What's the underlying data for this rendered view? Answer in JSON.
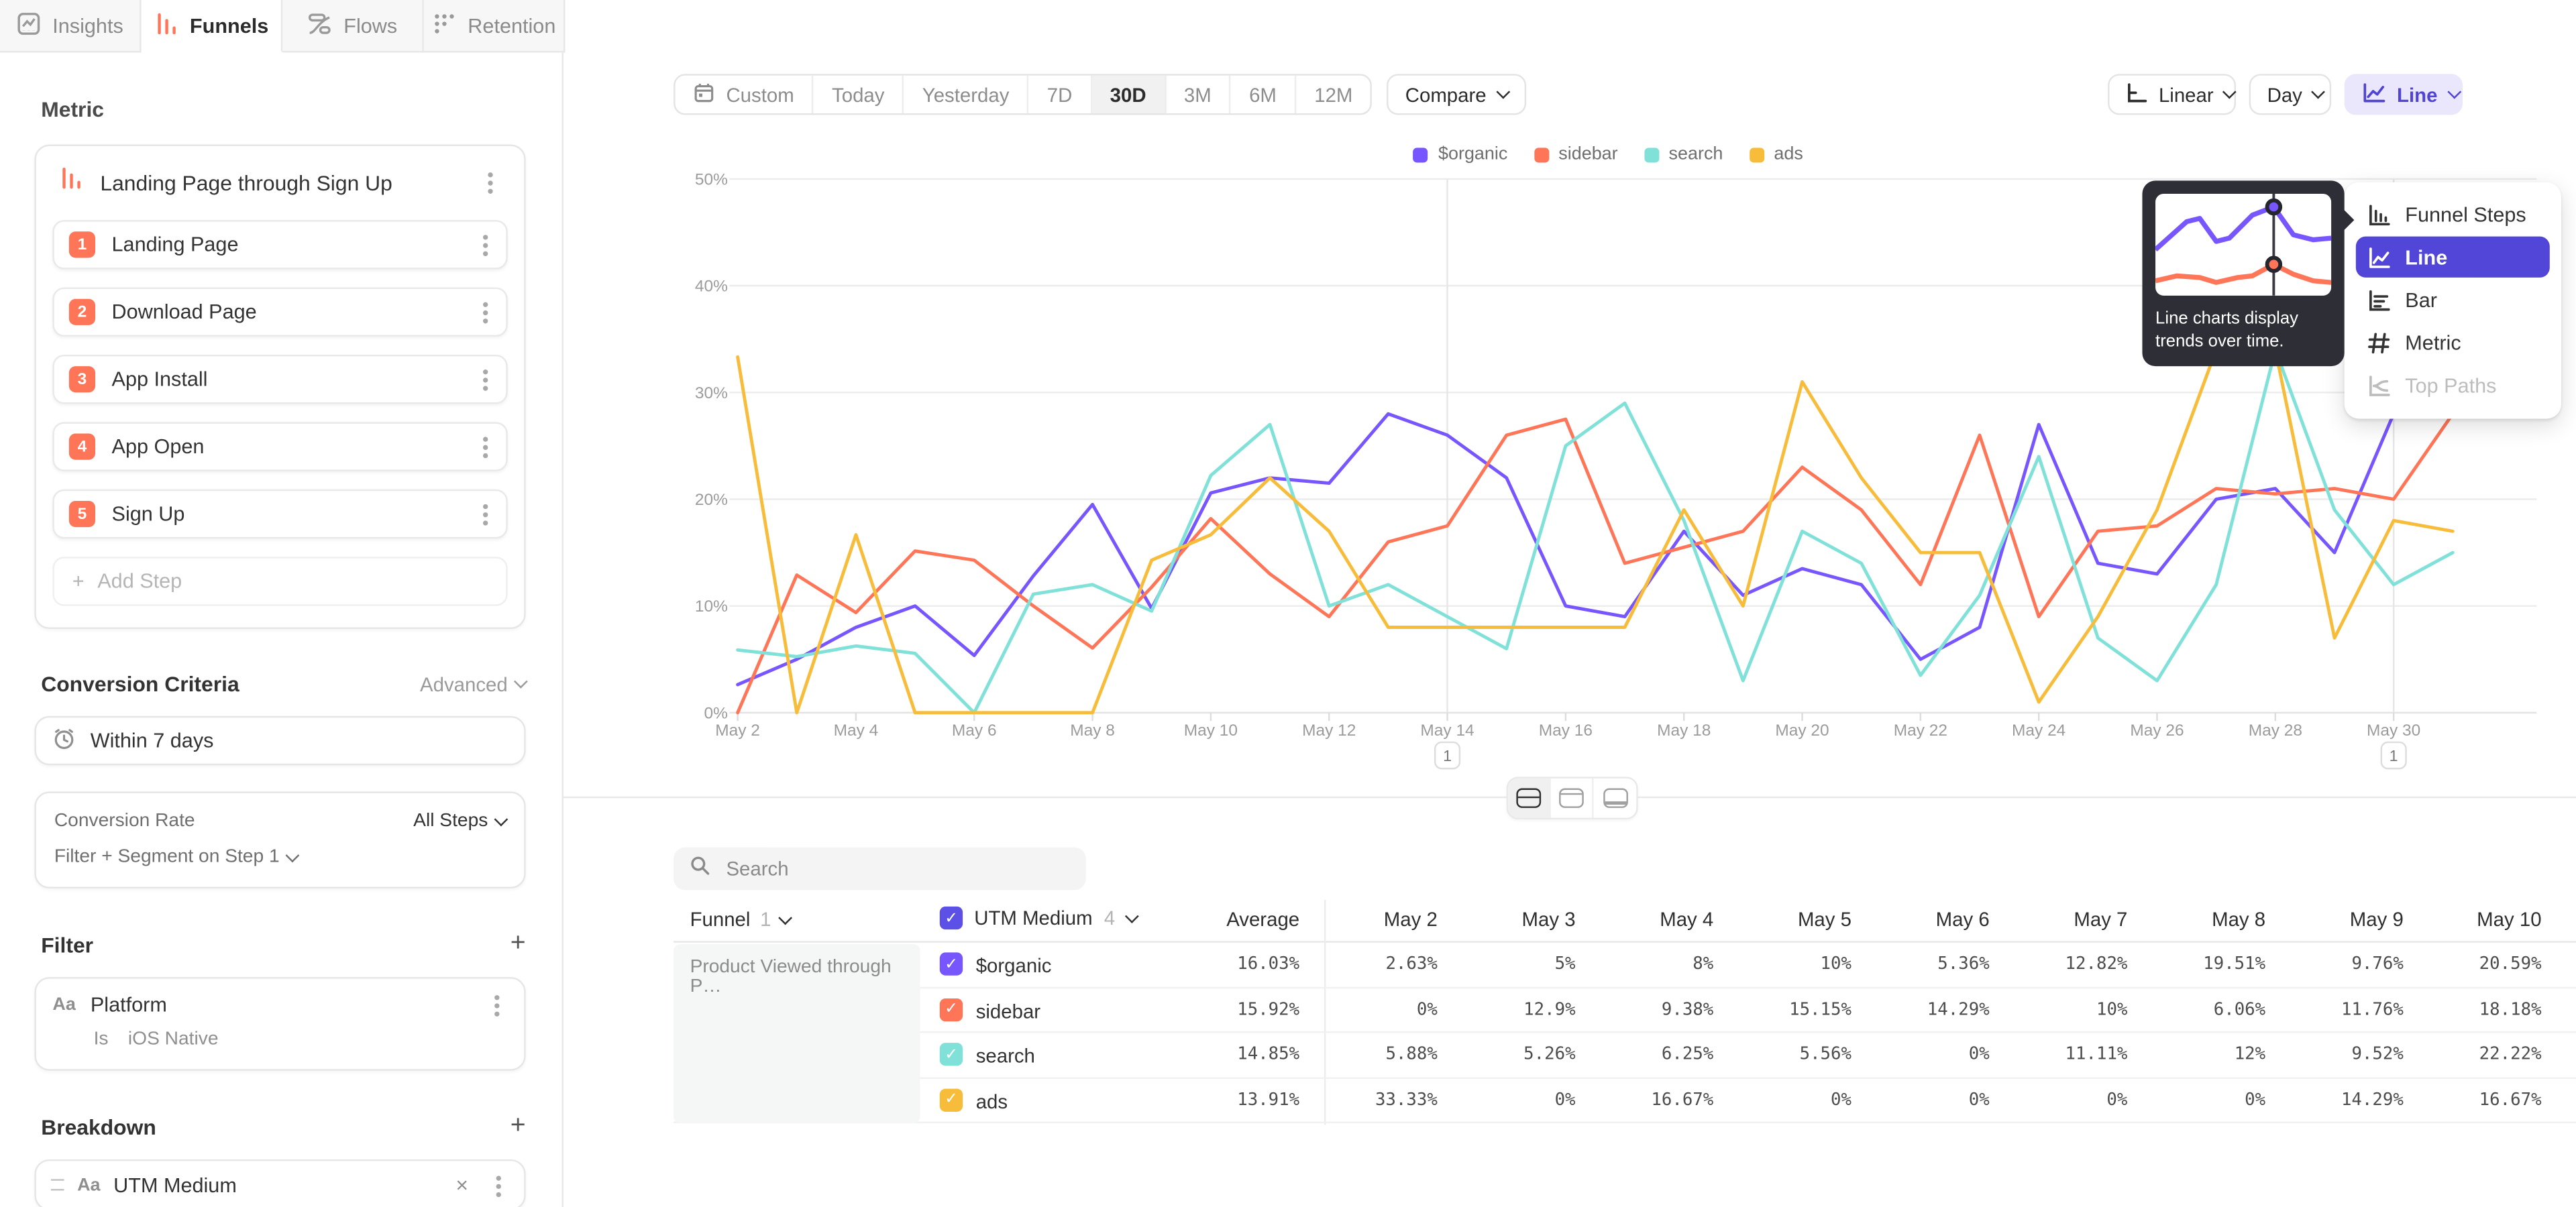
{
  "tabs": [
    {
      "label": "Insights",
      "icon": "insights-icon",
      "active": false
    },
    {
      "label": "Funnels",
      "icon": "funnels-icon",
      "active": true
    },
    {
      "label": "Flows",
      "icon": "flows-icon",
      "active": false
    },
    {
      "label": "Retention",
      "icon": "retention-icon",
      "active": false
    }
  ],
  "colors": {
    "accent_purple": "#5246d9",
    "coral": "#ff7557",
    "line_button_bg": "#eae7fc",
    "line_button_text": "#5044d4"
  },
  "sidebar": {
    "metric_label": "Metric",
    "metric_card": {
      "title": "Landing Page through Sign Up",
      "steps": [
        {
          "num": "1",
          "label": "Landing Page"
        },
        {
          "num": "2",
          "label": "Download Page"
        },
        {
          "num": "3",
          "label": "App Install"
        },
        {
          "num": "4",
          "label": "App Open"
        },
        {
          "num": "5",
          "label": "Sign Up"
        }
      ],
      "add_step_label": "Add Step"
    },
    "conversion_criteria": {
      "title": "Conversion Criteria",
      "advanced_label": "Advanced",
      "window_label": "Within 7 days",
      "rate_label": "Conversion Rate",
      "rate_value": "All Steps",
      "filter_segment_label": "Filter + Segment on Step 1"
    },
    "filter": {
      "title": "Filter",
      "type_badge": "Aa",
      "property": "Platform",
      "operator": "Is",
      "value": "iOS Native"
    },
    "breakdown": {
      "title": "Breakdown",
      "type_badge": "Aa",
      "property": "UTM Medium"
    }
  },
  "toolbar": {
    "ranges": [
      {
        "label": "Custom",
        "icon": "calendar-icon",
        "active": false
      },
      {
        "label": "Today",
        "active": false
      },
      {
        "label": "Yesterday",
        "active": false
      },
      {
        "label": "7D",
        "active": false
      },
      {
        "label": "30D",
        "active": true
      },
      {
        "label": "3M",
        "active": false
      },
      {
        "label": "6M",
        "active": false
      },
      {
        "label": "12M",
        "active": false
      }
    ],
    "compare_label": "Compare"
  },
  "controls": {
    "scale_label": "Linear",
    "interval_label": "Day",
    "view_label": "Line"
  },
  "view_menu": {
    "items": [
      {
        "label": "Funnel Steps",
        "icon": "funnel-steps-icon",
        "selected": false,
        "disabled": false
      },
      {
        "label": "Line",
        "icon": "line-chart-icon",
        "selected": true,
        "disabled": false
      },
      {
        "label": "Bar",
        "icon": "bar-chart-icon",
        "selected": false,
        "disabled": false
      },
      {
        "label": "Metric",
        "icon": "metric-icon",
        "selected": false,
        "disabled": false
      },
      {
        "label": "Top Paths",
        "icon": "top-paths-icon",
        "selected": false,
        "disabled": true
      }
    ]
  },
  "tooltip": {
    "text": "Line charts display trends over time."
  },
  "layout_toggles": [
    "split-view",
    "chart-only-view",
    "table-only-view"
  ],
  "chart_data": {
    "type": "line",
    "title": "",
    "xlabel": "",
    "ylabel": "",
    "ylim": [
      0,
      50
    ],
    "yticks": [
      "0%",
      "10%",
      "20%",
      "30%",
      "40%",
      "50%"
    ],
    "grid": true,
    "legend_position": "top",
    "x": [
      "May 2",
      "May 3",
      "May 4",
      "May 5",
      "May 6",
      "May 7",
      "May 8",
      "May 9",
      "May 10",
      "May 11",
      "May 12",
      "May 13",
      "May 14",
      "May 15",
      "May 16",
      "May 17",
      "May 18",
      "May 19",
      "May 20",
      "May 21",
      "May 22",
      "May 23",
      "May 24",
      "May 25",
      "May 26",
      "May 27",
      "May 28",
      "May 29",
      "May 30",
      "May 31"
    ],
    "x_tick_labels": [
      "May 2",
      "May 4",
      "May 6",
      "May 8",
      "May 10",
      "May 12",
      "May 14",
      "May 16",
      "May 18",
      "May 20",
      "May 22",
      "May 24",
      "May 26",
      "May 28",
      "May 30"
    ],
    "annotations": [
      {
        "x": "May 14",
        "label": "1"
      },
      {
        "x": "May 30",
        "label": "1"
      }
    ],
    "series": [
      {
        "name": "$organic",
        "color": "#7856ff",
        "values": [
          2.63,
          5,
          8,
          10,
          5.36,
          12.82,
          19.51,
          9.76,
          20.59,
          22,
          21.5,
          28,
          26,
          22,
          10,
          9,
          17,
          11,
          13.5,
          12,
          5,
          8,
          27,
          14,
          13,
          20,
          21,
          15,
          28,
          28.5
        ]
      },
      {
        "name": "sidebar",
        "color": "#ff7557",
        "values": [
          0,
          12.9,
          9.38,
          15.15,
          14.29,
          10,
          6.06,
          11.76,
          18.18,
          13,
          9,
          16,
          17.5,
          26,
          27.5,
          14,
          15.5,
          17,
          23,
          19,
          12,
          26,
          9,
          17,
          17.5,
          21,
          20.5,
          21,
          20,
          28
        ]
      },
      {
        "name": "search",
        "color": "#80e1d9",
        "values": [
          5.88,
          5.26,
          6.25,
          5.56,
          0,
          11.11,
          12,
          9.52,
          22.22,
          27,
          10,
          12,
          9,
          6,
          25,
          29,
          18,
          3,
          17,
          14,
          3.5,
          11,
          24,
          7,
          3,
          12,
          34,
          19,
          12,
          15
        ]
      },
      {
        "name": "ads",
        "color": "#f8bc3b",
        "values": [
          33.33,
          0,
          16.67,
          0,
          0,
          0,
          0,
          14.29,
          16.67,
          22,
          17,
          8,
          8,
          8,
          8,
          8,
          19,
          10,
          31,
          22,
          15,
          15,
          1,
          9,
          19,
          34,
          34,
          7,
          18,
          17
        ]
      }
    ]
  },
  "table": {
    "search_placeholder": "Search",
    "funnel_label": "Funnel",
    "funnel_count": "1",
    "breakdown_label": "UTM Medium",
    "breakdown_count": "4",
    "group_label": "Product Viewed through P…",
    "columns": [
      "Average",
      "May 2",
      "May 3",
      "May 4",
      "May 5",
      "May 6",
      "May 7",
      "May 8",
      "May 9",
      "May 10"
    ],
    "rows": [
      {
        "name": "$organic",
        "color": "#7856ff",
        "average": "16.03%",
        "values": [
          "2.63%",
          "5%",
          "8%",
          "10%",
          "5.36%",
          "12.82%",
          "19.51%",
          "9.76%",
          "20.59%"
        ]
      },
      {
        "name": "sidebar",
        "color": "#ff7557",
        "average": "15.92%",
        "values": [
          "0%",
          "12.9%",
          "9.38%",
          "15.15%",
          "14.29%",
          "10%",
          "6.06%",
          "11.76%",
          "18.18%"
        ]
      },
      {
        "name": "search",
        "color": "#80e1d9",
        "average": "14.85%",
        "values": [
          "5.88%",
          "5.26%",
          "6.25%",
          "5.56%",
          "0%",
          "11.11%",
          "12%",
          "9.52%",
          "22.22%"
        ]
      },
      {
        "name": "ads",
        "color": "#f8bc3b",
        "average": "13.91%",
        "values": [
          "33.33%",
          "0%",
          "16.67%",
          "0%",
          "0%",
          "0%",
          "0%",
          "14.29%",
          "16.67%"
        ]
      }
    ]
  }
}
